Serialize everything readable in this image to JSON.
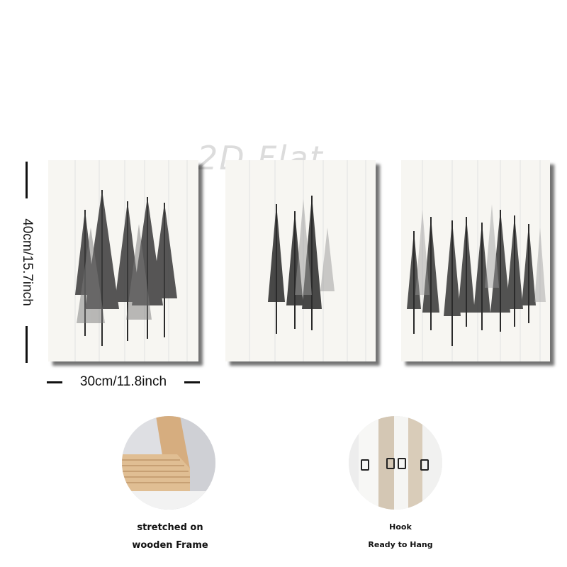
{
  "watermark": "2D Flat",
  "dimensions": {
    "width_label": "30cm/11.8inch",
    "height_label": "40cm/15.7inch"
  },
  "panels": [
    {
      "name": "left",
      "subject": "pine-trees-dense"
    },
    {
      "name": "center",
      "subject": "pine-trees-sparse"
    },
    {
      "name": "right",
      "subject": "pine-trees-forest"
    }
  ],
  "features": {
    "frame": {
      "line1": "stretched on",
      "line2": "wooden Frame"
    },
    "hook": {
      "line1": "Hook",
      "line2": "Ready to Hang"
    }
  },
  "colors": {
    "canvas": "#f7f6f2",
    "tree": "#2a2a2a",
    "wood": "#d9b48a"
  }
}
